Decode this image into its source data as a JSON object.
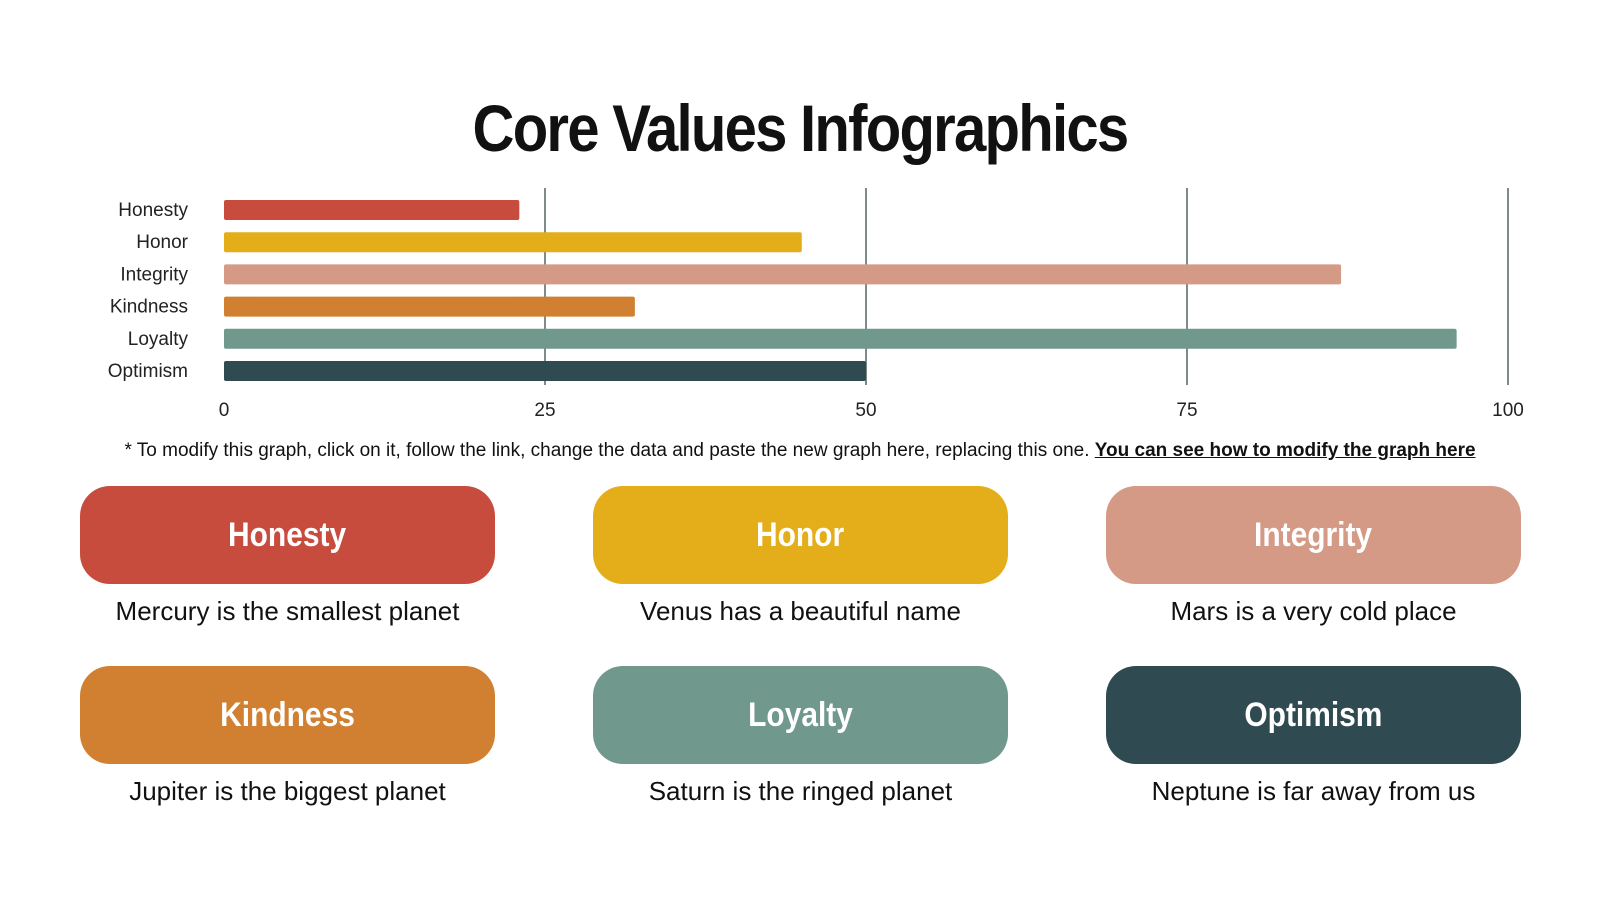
{
  "title": "Core Values Infographics",
  "chart_data": {
    "type": "bar",
    "orientation": "horizontal",
    "categories": [
      "Honesty",
      "Honor",
      "Integrity",
      "Kindness",
      "Loyalty",
      "Optimism"
    ],
    "values": [
      23,
      45,
      87,
      32,
      96,
      50
    ],
    "colors": [
      "#c84c3e",
      "#e4ae1a",
      "#d49a86",
      "#d08030",
      "#70988c",
      "#2f4a50"
    ],
    "xlim": [
      0,
      100
    ],
    "xticks": [
      "0",
      "25",
      "50",
      "75",
      "100"
    ],
    "grid": "vertical"
  },
  "note": {
    "text": "* To modify this graph, click on it, follow the link, change the data and paste the new graph here, replacing this one. ",
    "link": "You can see how to modify the graph here"
  },
  "cards": [
    {
      "label": "Honesty",
      "desc": "Mercury is the smallest planet",
      "color": "#c84c3e"
    },
    {
      "label": "Honor",
      "desc": "Venus has a beautiful name",
      "color": "#e4ae1a"
    },
    {
      "label": "Integrity",
      "desc": "Mars is a very cold place",
      "color": "#d49a86"
    },
    {
      "label": "Kindness",
      "desc": "Jupiter is the biggest planet",
      "color": "#d08030"
    },
    {
      "label": "Loyalty",
      "desc": "Saturn is the ringed planet",
      "color": "#70988c"
    },
    {
      "label": "Optimism",
      "desc": "Neptune is far away from us",
      "color": "#2f4a50"
    }
  ]
}
